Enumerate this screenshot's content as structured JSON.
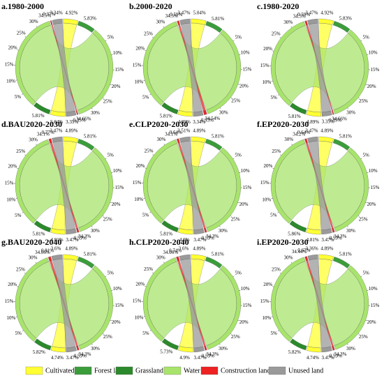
{
  "legend": {
    "items": [
      {
        "name": "Cultivated land",
        "color": "#ffff33"
      },
      {
        "name": "Forest land",
        "color": "#3a9d3a"
      },
      {
        "name": "Grassland",
        "color": "#2b8a2b"
      },
      {
        "name": "Water",
        "color": "#a8e46c"
      },
      {
        "name": "Construction land",
        "color": "#ee2222"
      },
      {
        "name": "Unused land",
        "color": "#9a9a9a"
      }
    ]
  },
  "chart_data": [
    {
      "type": "chord",
      "title": "a.1980-2000",
      "ticks": [
        {
          "value": 5,
          "label": "5%"
        },
        {
          "value": 10,
          "label": "10%"
        },
        {
          "value": 15,
          "label": "15%"
        },
        {
          "value": 20,
          "label": "20%"
        },
        {
          "value": 25,
          "label": "25%"
        },
        {
          "value": 30,
          "label": "30%"
        }
      ],
      "segments": [
        {
          "value": 4.92,
          "label": "4.92%",
          "color": "#ffff33"
        },
        {
          "value": 5.83,
          "label": "5.83%",
          "color": "#3a9d3a"
        },
        {
          "value": 34.66,
          "label": "34.66%",
          "color": "#a8e46c"
        },
        {
          "value": 0.35,
          "label": "0.35%",
          "color": "#ee2222"
        },
        {
          "value": 3.35,
          "label": "3.35%",
          "color": "#9a9a9a"
        },
        {
          "value": 5.04,
          "label": "5.04%",
          "color": "#ffff33"
        },
        {
          "value": 5.81,
          "label": "5.81%",
          "color": "#2b8a2b"
        },
        {
          "value": 34.5,
          "label": "34.5%",
          "color": "#a8e46c"
        },
        {
          "value": 0.37,
          "label": "0.37%",
          "color": "#ee2222"
        },
        {
          "value": 3.34,
          "label": "3.34%",
          "color": "#9a9a9a"
        }
      ]
    },
    {
      "type": "chord",
      "title": "b.2000-2020",
      "ticks": [
        {
          "value": 5,
          "label": "5%"
        },
        {
          "value": 10,
          "label": "10%"
        },
        {
          "value": 15,
          "label": "15%"
        },
        {
          "value": 20,
          "label": "20%"
        },
        {
          "value": 25,
          "label": "25%"
        },
        {
          "value": 30,
          "label": "30%"
        }
      ],
      "segments": [
        {
          "value": 5.04,
          "label": "5.04%",
          "color": "#ffff33"
        },
        {
          "value": 5.81,
          "label": "5.81%",
          "color": "#3a9d3a"
        },
        {
          "value": 34.54,
          "label": "34.54%",
          "color": "#a8e46c"
        },
        {
          "value": 0.93,
          "label": "0.93%",
          "color": "#ee2222"
        },
        {
          "value": 3.34,
          "label": "3.34%",
          "color": "#9a9a9a"
        },
        {
          "value": 4.89,
          "label": "4.89%",
          "color": "#ffff33"
        },
        {
          "value": 5.81,
          "label": "5.81%",
          "color": "#2b8a2b"
        },
        {
          "value": 34.5,
          "label": "34.5%",
          "color": "#a8e46c"
        },
        {
          "value": 0.59,
          "label": "0.59%",
          "color": "#ee2222"
        },
        {
          "value": 3.47,
          "label": "3.47%",
          "color": "#9a9a9a"
        }
      ]
    },
    {
      "type": "chord",
      "title": "c.1980-2020",
      "ticks": [
        {
          "value": 5,
          "label": "5%"
        },
        {
          "value": 10,
          "label": "10%"
        },
        {
          "value": 15,
          "label": "15%"
        },
        {
          "value": 20,
          "label": "20%"
        },
        {
          "value": 25,
          "label": "25%"
        },
        {
          "value": 30,
          "label": "30%"
        }
      ],
      "segments": [
        {
          "value": 4.92,
          "label": "4.92%",
          "color": "#ffff33"
        },
        {
          "value": 5.83,
          "label": "5.83%",
          "color": "#3a9d3a"
        },
        {
          "value": 34.66,
          "label": "34.66%",
          "color": "#a8e46c"
        },
        {
          "value": 0.35,
          "label": "0.35%",
          "color": "#ee2222"
        },
        {
          "value": 3.35,
          "label": "3.35%",
          "color": "#9a9a9a"
        },
        {
          "value": 4.89,
          "label": "4.89%",
          "color": "#ffff33"
        },
        {
          "value": 5.81,
          "label": "5.81%",
          "color": "#2b8a2b"
        },
        {
          "value": 34.5,
          "label": "34.5%",
          "color": "#a8e46c"
        },
        {
          "value": 0.59,
          "label": "0.59%",
          "color": "#ee2222"
        },
        {
          "value": 3.47,
          "label": "3.47%",
          "color": "#9a9a9a"
        }
      ]
    },
    {
      "type": "chord",
      "title": "d.BAU2020-2030",
      "ticks": [
        {
          "value": 5,
          "label": "5%"
        },
        {
          "value": 10,
          "label": "10%"
        },
        {
          "value": 15,
          "label": "15%"
        },
        {
          "value": 20,
          "label": "20%"
        },
        {
          "value": 25,
          "label": "25%"
        },
        {
          "value": 30,
          "label": "30%"
        }
      ],
      "segments": [
        {
          "value": 4.89,
          "label": "4.89%",
          "color": "#ffff33"
        },
        {
          "value": 5.81,
          "label": "5.81%",
          "color": "#3a9d3a"
        },
        {
          "value": 34.3,
          "label": "34.3%",
          "color": "#a8e46c"
        },
        {
          "value": 0.59,
          "label": "0.59%",
          "color": "#ee2222"
        },
        {
          "value": 3.47,
          "label": "3.47%",
          "color": "#9a9a9a"
        },
        {
          "value": 4.81,
          "label": "4.81%",
          "color": "#ffff33"
        },
        {
          "value": 5.81,
          "label": "5.81%",
          "color": "#2b8a2b"
        },
        {
          "value": 34.1,
          "label": "34.1%",
          "color": "#a8e46c"
        },
        {
          "value": 0.77,
          "label": "0.77%",
          "color": "#ee2222"
        },
        {
          "value": 3.47,
          "label": "3.47%",
          "color": "#9a9a9a"
        }
      ]
    },
    {
      "type": "chord",
      "title": "e.CLP2020-2030",
      "ticks": [
        {
          "value": 5,
          "label": "5%"
        },
        {
          "value": 10,
          "label": "10%"
        },
        {
          "value": 15,
          "label": "15%"
        },
        {
          "value": 20,
          "label": "20%"
        },
        {
          "value": 25,
          "label": "25%"
        },
        {
          "value": 30,
          "label": "30%"
        }
      ],
      "segments": [
        {
          "value": 4.89,
          "label": "4.89%",
          "color": "#ffff33"
        },
        {
          "value": 5.81,
          "label": "5.81%",
          "color": "#3a9d3a"
        },
        {
          "value": 34.3,
          "label": "34.3%",
          "color": "#a8e46c"
        },
        {
          "value": 0.59,
          "label": "0.59%",
          "color": "#ee2222"
        },
        {
          "value": 3.47,
          "label": "3.47%",
          "color": "#9a9a9a"
        },
        {
          "value": 4.9,
          "label": "4.9%",
          "color": "#ffff33"
        },
        {
          "value": 5.81,
          "label": "5.81%",
          "color": "#2b8a2b"
        },
        {
          "value": 34.1,
          "label": "34.1%",
          "color": "#a8e46c"
        },
        {
          "value": 0.64,
          "label": "0.64%",
          "color": "#ee2222"
        },
        {
          "value": 3.51,
          "label": "3.51%",
          "color": "#9a9a9a"
        }
      ]
    },
    {
      "type": "chord",
      "title": "f.EP2020-2030",
      "ticks": [
        {
          "value": 5,
          "label": "5%"
        },
        {
          "value": 10,
          "label": "10%"
        },
        {
          "value": 15,
          "label": "15%"
        },
        {
          "value": 20,
          "label": "20%"
        },
        {
          "value": 25,
          "label": "25%"
        },
        {
          "value": 30,
          "label": "30%"
        }
      ],
      "segments": [
        {
          "value": 4.89,
          "label": "4.89%",
          "color": "#ffff33"
        },
        {
          "value": 5.81,
          "label": "5.81%",
          "color": "#3a9d3a"
        },
        {
          "value": 34.3,
          "label": "34.3%",
          "color": "#a8e46c"
        },
        {
          "value": 0.59,
          "label": "0.59%",
          "color": "#ee2222"
        },
        {
          "value": 3.47,
          "label": "3.47%",
          "color": "#9a9a9a"
        },
        {
          "value": 4.81,
          "label": "4.81%",
          "color": "#ffff33"
        },
        {
          "value": 5.86,
          "label": "5.86%",
          "color": "#2b8a2b"
        },
        {
          "value": 34.2,
          "label": "34.2%",
          "color": "#a8e46c"
        },
        {
          "value": 0.64,
          "label": "0.64%",
          "color": "#ee2222"
        },
        {
          "value": 3.47,
          "label": "3.47%",
          "color": "#9a9a9a"
        }
      ]
    },
    {
      "type": "chord",
      "title": "g.BAU2020-2040",
      "ticks": [
        {
          "value": 5,
          "label": "5%"
        },
        {
          "value": 10,
          "label": "10%"
        },
        {
          "value": 15,
          "label": "15%"
        },
        {
          "value": 20,
          "label": "20%"
        },
        {
          "value": 25,
          "label": "25%"
        },
        {
          "value": 30,
          "label": "30%"
        }
      ],
      "segments": [
        {
          "value": 4.89,
          "label": "4.89%",
          "color": "#ffff33"
        },
        {
          "value": 5.81,
          "label": "5.81%",
          "color": "#3a9d3a"
        },
        {
          "value": 34.3,
          "label": "34.3%",
          "color": "#a8e46c"
        },
        {
          "value": 0.59,
          "label": "0.59%",
          "color": "#ee2222"
        },
        {
          "value": 3.47,
          "label": "3.47%",
          "color": "#9a9a9a"
        },
        {
          "value": 4.74,
          "label": "4.74%",
          "color": "#ffff33"
        },
        {
          "value": 5.82,
          "label": "5.82%",
          "color": "#2b8a2b"
        },
        {
          "value": 34.06,
          "label": "34.06%",
          "color": "#a8e46c"
        },
        {
          "value": 0.81,
          "label": "0.81%",
          "color": "#ee2222"
        },
        {
          "value": 3.6,
          "label": "3.6%",
          "color": "#9a9a9a"
        }
      ]
    },
    {
      "type": "chord",
      "title": "h.CLP2020-2040",
      "ticks": [
        {
          "value": 5,
          "label": "5%"
        },
        {
          "value": 10,
          "label": "10%"
        },
        {
          "value": 15,
          "label": "15%"
        },
        {
          "value": 20,
          "label": "20%"
        },
        {
          "value": 25,
          "label": "25%"
        },
        {
          "value": 30,
          "label": "30%"
        }
      ],
      "segments": [
        {
          "value": 4.89,
          "label": "4.89%",
          "color": "#ffff33"
        },
        {
          "value": 5.81,
          "label": "5.81%",
          "color": "#3a9d3a"
        },
        {
          "value": 34.3,
          "label": "34.3%",
          "color": "#a8e46c"
        },
        {
          "value": 0.59,
          "label": "0.59%",
          "color": "#ee2222"
        },
        {
          "value": 3.47,
          "label": "3.47%",
          "color": "#9a9a9a"
        },
        {
          "value": 4.9,
          "label": "4.9%",
          "color": "#ffff33"
        },
        {
          "value": 5.73,
          "label": "5.73%",
          "color": "#2b8a2b"
        },
        {
          "value": 34.06,
          "label": "34.06%",
          "color": "#a8e46c"
        },
        {
          "value": 0.74,
          "label": "0.74%",
          "color": "#ee2222"
        },
        {
          "value": 3.6,
          "label": "3.6%",
          "color": "#9a9a9a"
        }
      ]
    },
    {
      "type": "chord",
      "title": "i.EP2020-2030",
      "ticks": [
        {
          "value": 5,
          "label": "5%"
        },
        {
          "value": 10,
          "label": "10%"
        },
        {
          "value": 15,
          "label": "15%"
        },
        {
          "value": 20,
          "label": "20%"
        },
        {
          "value": 25,
          "label": "25%"
        },
        {
          "value": 30,
          "label": "30%"
        }
      ],
      "segments": [
        {
          "value": 4.89,
          "label": "4.89%",
          "color": "#ffff33"
        },
        {
          "value": 5.81,
          "label": "5.81%",
          "color": "#3a9d3a"
        },
        {
          "value": 34.3,
          "label": "34.3%",
          "color": "#a8e46c"
        },
        {
          "value": 0.59,
          "label": "0.59%",
          "color": "#ee2222"
        },
        {
          "value": 3.47,
          "label": "3.47%",
          "color": "#9a9a9a"
        },
        {
          "value": 4.74,
          "label": "4.74%",
          "color": "#ffff33"
        },
        {
          "value": 5.82,
          "label": "5.82%",
          "color": "#2b8a2b"
        },
        {
          "value": 34.44,
          "label": "34.44%",
          "color": "#a8e46c"
        },
        {
          "value": 0.67,
          "label": "0.67%",
          "color": "#ee2222"
        },
        {
          "value": 3.36,
          "label": "3.36%",
          "color": "#9a9a9a"
        }
      ]
    }
  ]
}
